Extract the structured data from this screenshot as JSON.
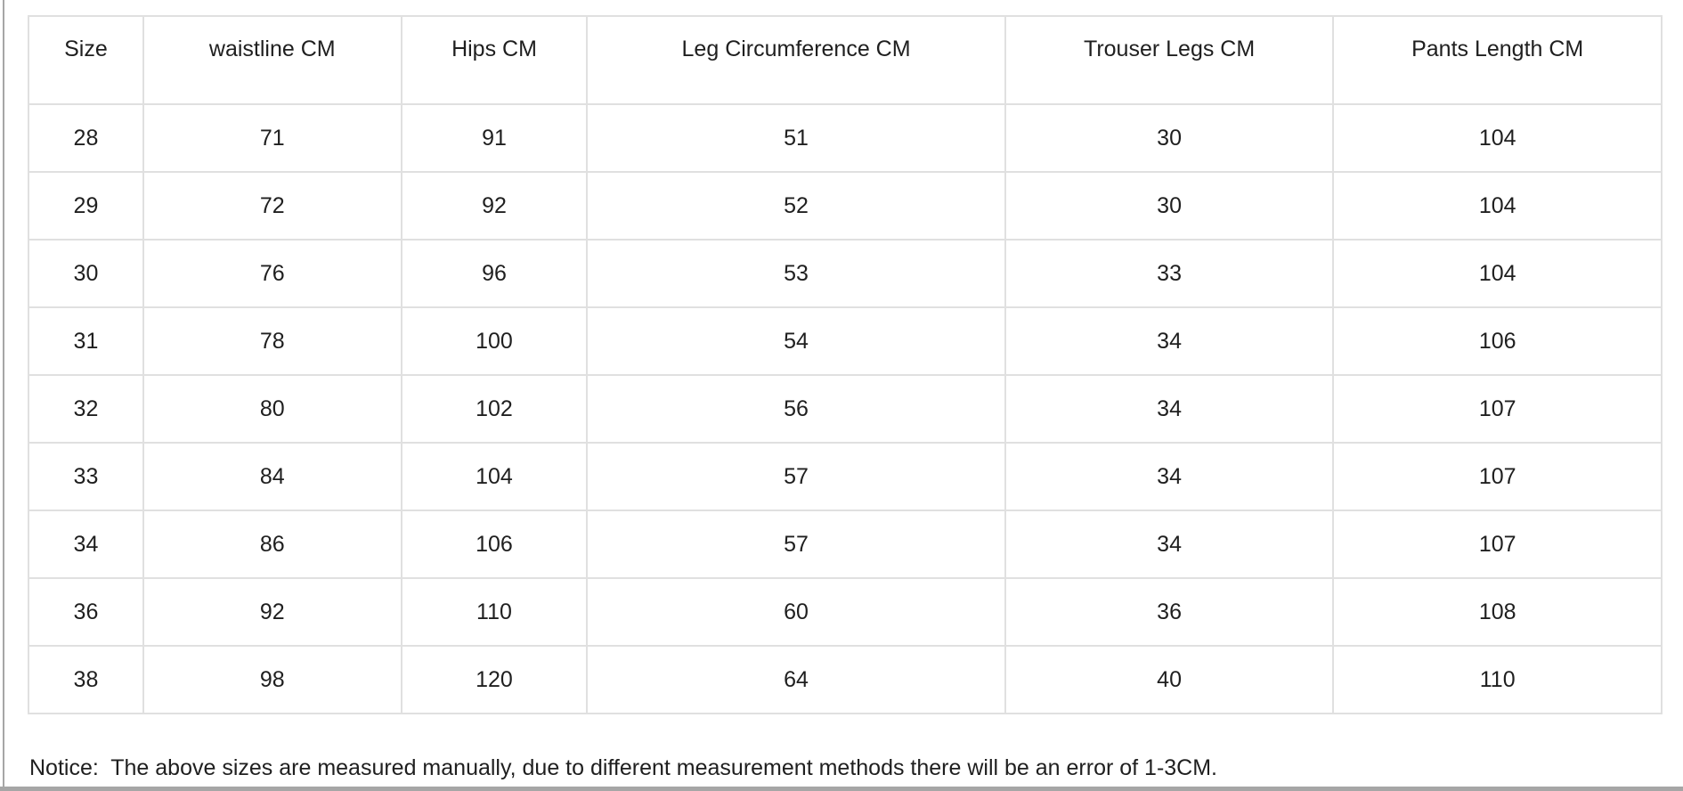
{
  "colors": {
    "background": "#ffffff",
    "table_border": "#e0e0e0",
    "page_edge": "#a6a6a6",
    "text": "#1f1f1f"
  },
  "chart_data": {
    "type": "table",
    "columns": [
      "Size",
      "waistline CM",
      "Hips CM",
      "Leg Circumference CM",
      "Trouser Legs CM",
      "Pants Length CM"
    ],
    "rows": [
      [
        28,
        71,
        91,
        51,
        30,
        104
      ],
      [
        29,
        72,
        92,
        52,
        30,
        104
      ],
      [
        30,
        76,
        96,
        53,
        33,
        104
      ],
      [
        31,
        78,
        100,
        54,
        34,
        106
      ],
      [
        32,
        80,
        102,
        56,
        34,
        107
      ],
      [
        33,
        84,
        104,
        57,
        34,
        107
      ],
      [
        34,
        86,
        106,
        57,
        34,
        107
      ],
      [
        36,
        92,
        110,
        60,
        36,
        108
      ],
      [
        38,
        98,
        120,
        64,
        40,
        110
      ]
    ],
    "note": "Notice:  The above sizes are measured manually, due to different measurement methods there will be an error of 1-3CM.",
    "layout_hints": {
      "grid": "on",
      "header_row": true,
      "column_width_pct": [
        7.03,
        15.8,
        11.38,
        25.6,
        20.1,
        20.1
      ]
    }
  }
}
